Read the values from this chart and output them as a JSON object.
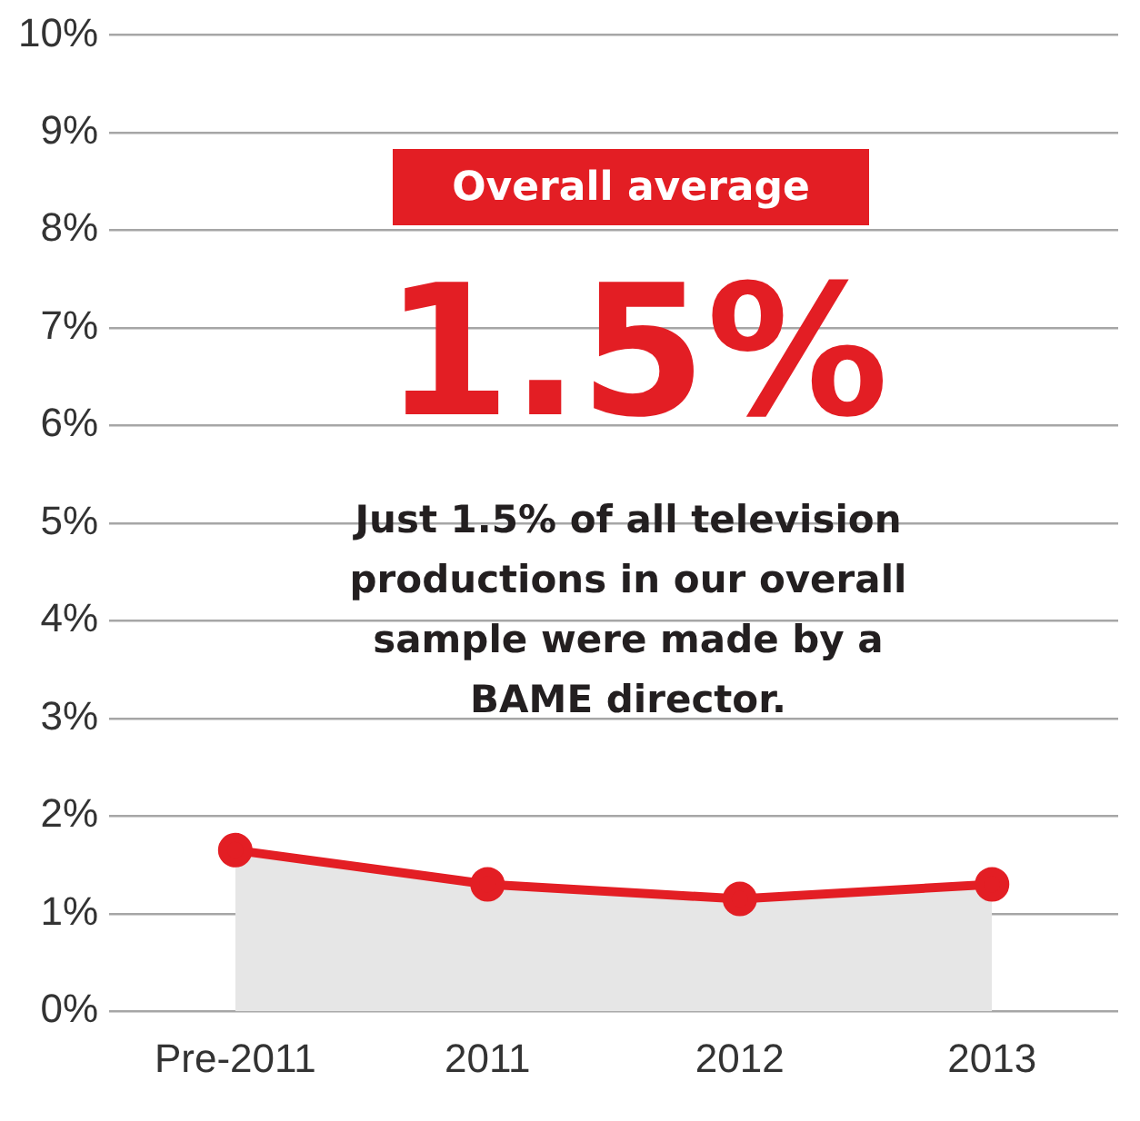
{
  "chart_data": {
    "type": "area",
    "categories": [
      "Pre-2011",
      "2011",
      "2012",
      "2013"
    ],
    "series": [
      {
        "color": "#e31e24",
        "values": [
          1.65,
          1.3,
          1.15,
          1.3
        ]
      }
    ],
    "ylim": [
      0,
      10
    ],
    "yticks": [
      {
        "value": 0,
        "label": "0%"
      },
      {
        "value": 1,
        "label": "1%"
      },
      {
        "value": 2,
        "label": "2%"
      },
      {
        "value": 3,
        "label": "3%"
      },
      {
        "value": 4,
        "label": "4%"
      },
      {
        "value": 5,
        "label": "5%"
      },
      {
        "value": 6,
        "label": "6%"
      },
      {
        "value": 7,
        "label": "7%"
      },
      {
        "value": 8,
        "label": "8%"
      },
      {
        "value": 9,
        "label": "9%"
      },
      {
        "value": 10,
        "label": "10%"
      }
    ],
    "grid": "y",
    "legend": false,
    "marker": "circle",
    "line_style": "solid",
    "annotations": [
      "Overall average",
      "1.5%",
      "Just 1.5% of all television productions in our overall sample were made by a BAME director."
    ]
  }
}
